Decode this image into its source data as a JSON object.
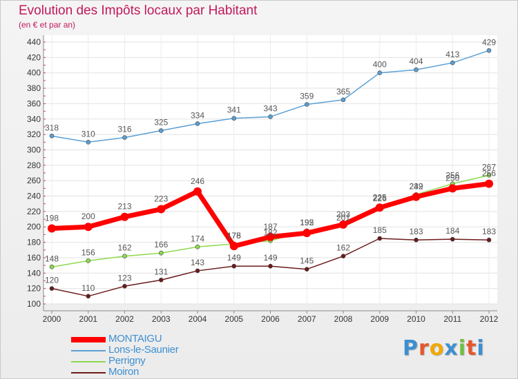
{
  "title": "Evolution des Impôts locaux par Habitant",
  "subtitle": "(en € et par an)",
  "brand_logo": "Proxiti",
  "chart_data": {
    "type": "line",
    "title": "Evolution des Impôts locaux par Habitant",
    "subtitle": "(en € et par an)",
    "x": [
      "2000",
      "2001",
      "2002",
      "2003",
      "2004",
      "2005",
      "2006",
      "2007",
      "2008",
      "2009",
      "2010",
      "2011",
      "2012"
    ],
    "ylim": [
      100,
      440
    ],
    "yticks": [
      100,
      120,
      140,
      160,
      180,
      200,
      220,
      240,
      260,
      280,
      300,
      320,
      340,
      360,
      380,
      400,
      420,
      440
    ],
    "grid": true,
    "legend_position": "bottom-left",
    "series": [
      {
        "name": "MONTAIGU",
        "color": "#ff0000",
        "values": [
          198,
          200,
          213,
          223,
          246,
          175,
          187,
          192,
          203,
          225,
          239,
          250,
          256
        ]
      },
      {
        "name": "Lons-le-Saunier",
        "color": "#5a9fd4",
        "values": [
          318,
          310,
          316,
          325,
          334,
          341,
          343,
          359,
          365,
          400,
          404,
          413,
          429
        ]
      },
      {
        "name": "Perrigny",
        "color": "#8cd94f",
        "values": [
          148,
          156,
          162,
          166,
          174,
          178,
          182,
          195,
          201,
          226,
          242,
          256,
          267
        ]
      },
      {
        "name": "Moiron",
        "color": "#6b1a1a",
        "values": [
          120,
          110,
          123,
          131,
          143,
          149,
          149,
          145,
          162,
          185,
          183,
          184,
          183
        ]
      }
    ]
  }
}
